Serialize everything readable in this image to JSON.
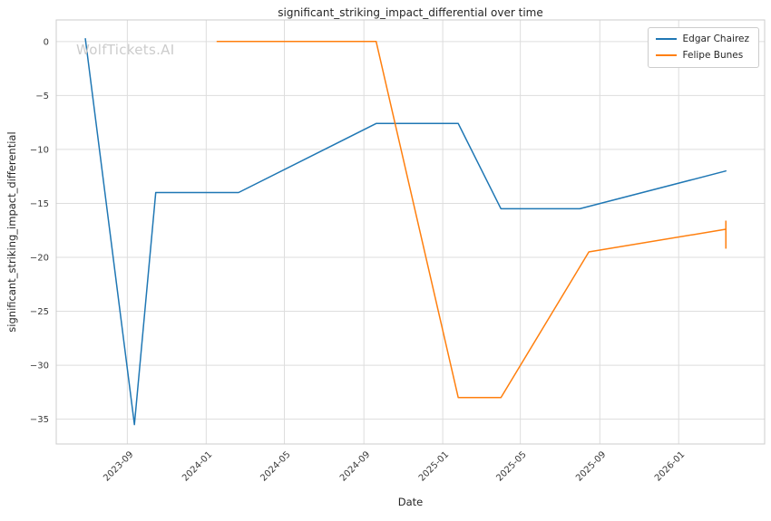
{
  "page": {
    "background": "#ffffff"
  },
  "watermark": {
    "text": "WolfTickets.AI",
    "color": "#cccccc"
  },
  "chart_data": {
    "type": "line",
    "title": "significant_striking_impact_differential over time",
    "xlabel": "Date",
    "ylabel": "significant_striking_impact_differential",
    "grid": true,
    "legend_position": "upper right",
    "xlim": [
      "2023-05-14",
      "2026-05-14"
    ],
    "ylim": [
      -37.3,
      2.0
    ],
    "x_ticks": [
      {
        "label": "2023-09",
        "date": "2023-09-01"
      },
      {
        "label": "2024-01",
        "date": "2024-01-01"
      },
      {
        "label": "2024-05",
        "date": "2024-05-01"
      },
      {
        "label": "2024-09",
        "date": "2024-09-01"
      },
      {
        "label": "2025-01",
        "date": "2025-01-01"
      },
      {
        "label": "2025-05",
        "date": "2025-05-01"
      },
      {
        "label": "2025-09",
        "date": "2025-09-01"
      },
      {
        "label": "2026-01",
        "date": "2026-01-01"
      }
    ],
    "y_tick_values": [
      0,
      -5,
      -10,
      -15,
      -20,
      -25,
      -30,
      -35
    ],
    "y_tick_labels": [
      "0",
      "−5",
      "−10",
      "−15",
      "−20",
      "−25",
      "−30",
      "−35"
    ],
    "series": [
      {
        "name": "Edgar Chairez",
        "color": "#1f77b4",
        "points": [
          [
            "2023-06-28",
            0.25
          ],
          [
            "2023-09-12",
            -35.5
          ],
          [
            "2023-10-15",
            -14
          ],
          [
            "2024-02-20",
            -14
          ],
          [
            "2024-09-20",
            -7.6
          ],
          [
            "2025-01-25",
            -7.6
          ],
          [
            "2025-04-01",
            -15.5
          ],
          [
            "2025-08-01",
            -15.5
          ],
          [
            "2026-03-15",
            -12
          ]
        ]
      },
      {
        "name": "Felipe Bunes",
        "color": "#ff7f0e",
        "points": [
          [
            "2024-01-18",
            0
          ],
          [
            "2024-09-20",
            0
          ],
          [
            "2025-01-25",
            -33
          ],
          [
            "2025-04-01",
            -33
          ],
          [
            "2025-08-15",
            -19.5
          ],
          [
            "2026-03-15",
            -17.4
          ]
        ],
        "end_bar": {
          "date": "2026-03-15",
          "y1": -16.6,
          "y2": -19.2
        }
      }
    ],
    "style": {
      "grid_color": "#dddddd",
      "spine_color": "#cccccc",
      "text_color": "#3a3a3a"
    }
  }
}
